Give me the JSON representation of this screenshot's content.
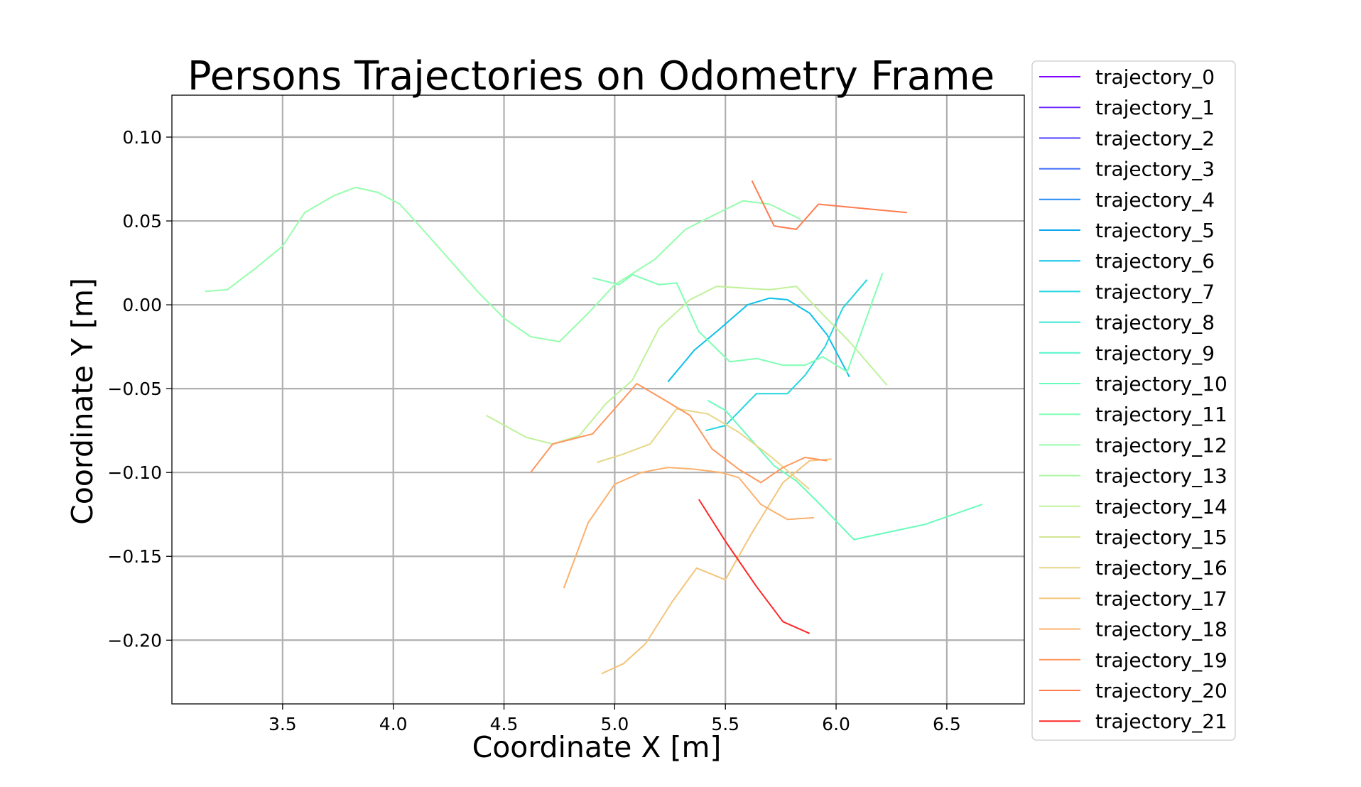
{
  "chart_data": {
    "type": "line",
    "title": "Persons Trajectories on Odometry Frame",
    "xlabel": "Coordinate X [m]",
    "ylabel": "Coordinate Y [m]",
    "xlim": [
      3.0,
      6.85
    ],
    "ylim": [
      -0.238,
      0.125
    ],
    "xticks": [
      3.5,
      4.0,
      4.5,
      5.0,
      5.5,
      6.0,
      6.5
    ],
    "yticks": [
      0.1,
      0.05,
      0.0,
      -0.05,
      -0.1,
      -0.15,
      -0.2
    ],
    "xtick_labels": [
      "3.5",
      "4.0",
      "4.5",
      "5.0",
      "5.5",
      "6.0",
      "6.5"
    ],
    "ytick_labels": [
      "0.10",
      "0.05",
      "0.00",
      "−0.05",
      "−0.10",
      "−0.15",
      "−0.20"
    ],
    "grid": true,
    "legend_position": "outside-right",
    "series": [
      {
        "name": "trajectory_0",
        "color": "#8000ff",
        "points": []
      },
      {
        "name": "trajectory_1",
        "color": "#6a24fe",
        "points": []
      },
      {
        "name": "trajectory_2",
        "color": "#5247fc",
        "points": []
      },
      {
        "name": "trajectory_3",
        "color": "#3c6af9",
        "points": []
      },
      {
        "name": "trajectory_4",
        "color": "#2489f5",
        "points": []
      },
      {
        "name": "trajectory_5",
        "color": "#0ea7ef",
        "points": []
      },
      {
        "name": "trajectory_6",
        "color": "#0cc0e9",
        "points": [
          [
            5.24,
            -0.046
          ],
          [
            5.36,
            -0.027
          ],
          [
            5.46,
            -0.016
          ],
          [
            5.6,
            0.0
          ],
          [
            5.7,
            0.004
          ],
          [
            5.78,
            0.003
          ],
          [
            5.88,
            -0.005
          ],
          [
            5.96,
            -0.018
          ],
          [
            6.06,
            -0.043
          ]
        ]
      },
      {
        "name": "trajectory_7",
        "color": "#24d6e0",
        "points": [
          [
            5.41,
            -0.075
          ],
          [
            5.5,
            -0.072
          ],
          [
            5.64,
            -0.053
          ],
          [
            5.78,
            -0.053
          ],
          [
            5.86,
            -0.042
          ],
          [
            5.95,
            -0.025
          ],
          [
            6.03,
            -0.002
          ],
          [
            6.14,
            0.015
          ]
        ]
      },
      {
        "name": "trajectory_8",
        "color": "#3ae7d5",
        "points": []
      },
      {
        "name": "trajectory_9",
        "color": "#52f4ca",
        "points": []
      },
      {
        "name": "trajectory_10",
        "color": "#6afcbc",
        "points": [
          [
            5.42,
            -0.057
          ],
          [
            5.5,
            -0.063
          ],
          [
            5.6,
            -0.078
          ],
          [
            5.72,
            -0.096
          ],
          [
            5.82,
            -0.105
          ],
          [
            5.92,
            -0.118
          ],
          [
            6.08,
            -0.14
          ],
          [
            6.4,
            -0.131
          ],
          [
            6.66,
            -0.119
          ]
        ]
      },
      {
        "name": "trajectory_11",
        "color": "#80ffb4",
        "points": [
          [
            4.9,
            0.016
          ],
          [
            5.02,
            0.012
          ],
          [
            5.08,
            0.018
          ],
          [
            5.2,
            0.012
          ],
          [
            5.28,
            0.013
          ],
          [
            5.38,
            -0.016
          ],
          [
            5.52,
            -0.034
          ],
          [
            5.64,
            -0.032
          ],
          [
            5.76,
            -0.036
          ],
          [
            5.86,
            -0.036
          ],
          [
            5.94,
            -0.031
          ],
          [
            6.05,
            -0.04
          ],
          [
            6.21,
            0.019
          ]
        ]
      },
      {
        "name": "trajectory_12",
        "color": "#96feac",
        "points": [
          [
            3.15,
            0.008
          ],
          [
            3.25,
            0.009
          ],
          [
            3.38,
            0.022
          ],
          [
            3.5,
            0.035
          ],
          [
            3.6,
            0.055
          ],
          [
            3.73,
            0.065
          ],
          [
            3.83,
            0.07
          ],
          [
            3.93,
            0.067
          ],
          [
            4.03,
            0.06
          ],
          [
            4.2,
            0.035
          ],
          [
            4.38,
            0.008
          ],
          [
            4.5,
            -0.008
          ],
          [
            4.62,
            -0.019
          ],
          [
            4.75,
            -0.022
          ],
          [
            4.88,
            -0.005
          ],
          [
            5.0,
            0.012
          ],
          [
            5.18,
            0.027
          ],
          [
            5.32,
            0.045
          ],
          [
            5.44,
            0.053
          ],
          [
            5.58,
            0.062
          ],
          [
            5.7,
            0.06
          ],
          [
            5.84,
            0.051
          ]
        ]
      },
      {
        "name": "trajectory_13",
        "color": "#acf9a3",
        "points": []
      },
      {
        "name": "trajectory_14",
        "color": "#c0f19a",
        "points": [
          [
            4.42,
            -0.066
          ],
          [
            4.6,
            -0.079
          ],
          [
            4.72,
            -0.083
          ],
          [
            4.84,
            -0.078
          ],
          [
            4.96,
            -0.059
          ],
          [
            5.08,
            -0.045
          ],
          [
            5.2,
            -0.014
          ],
          [
            5.34,
            0.003
          ],
          [
            5.46,
            0.011
          ],
          [
            5.58,
            0.01
          ],
          [
            5.7,
            0.009
          ],
          [
            5.82,
            0.011
          ],
          [
            5.92,
            -0.003
          ],
          [
            6.06,
            -0.022
          ],
          [
            6.23,
            -0.048
          ]
        ]
      },
      {
        "name": "trajectory_15",
        "color": "#d4e691",
        "points": []
      },
      {
        "name": "trajectory_16",
        "color": "#e6d787",
        "points": [
          [
            4.92,
            -0.094
          ],
          [
            5.04,
            -0.089
          ],
          [
            5.16,
            -0.083
          ],
          [
            5.28,
            -0.062
          ],
          [
            5.42,
            -0.065
          ],
          [
            5.56,
            -0.076
          ],
          [
            5.7,
            -0.09
          ],
          [
            5.88,
            -0.11
          ]
        ]
      },
      {
        "name": "trajectory_17",
        "color": "#f4c47a",
        "points": [
          [
            4.94,
            -0.22
          ],
          [
            5.04,
            -0.214
          ],
          [
            5.14,
            -0.202
          ],
          [
            5.26,
            -0.177
          ],
          [
            5.37,
            -0.157
          ],
          [
            5.5,
            -0.164
          ],
          [
            5.62,
            -0.136
          ],
          [
            5.76,
            -0.106
          ],
          [
            5.88,
            -0.093
          ],
          [
            5.98,
            -0.092
          ]
        ]
      },
      {
        "name": "trajectory_18",
        "color": "#fcb06c",
        "points": [
          [
            4.77,
            -0.169
          ],
          [
            4.88,
            -0.13
          ],
          [
            5.0,
            -0.107
          ],
          [
            5.12,
            -0.1
          ],
          [
            5.24,
            -0.097
          ],
          [
            5.36,
            -0.098
          ],
          [
            5.48,
            -0.1
          ],
          [
            5.56,
            -0.103
          ],
          [
            5.66,
            -0.119
          ],
          [
            5.78,
            -0.128
          ],
          [
            5.9,
            -0.127
          ]
        ]
      },
      {
        "name": "trajectory_19",
        "color": "#ff985e",
        "points": [
          [
            4.62,
            -0.1
          ],
          [
            4.72,
            -0.083
          ],
          [
            4.9,
            -0.077
          ],
          [
            5.1,
            -0.047
          ],
          [
            5.24,
            -0.058
          ],
          [
            5.34,
            -0.066
          ],
          [
            5.44,
            -0.086
          ],
          [
            5.56,
            -0.098
          ],
          [
            5.66,
            -0.106
          ],
          [
            5.76,
            -0.097
          ],
          [
            5.86,
            -0.091
          ],
          [
            5.96,
            -0.093
          ]
        ]
      },
      {
        "name": "trajectory_20",
        "color": "#ff7b4e",
        "points": [
          [
            5.62,
            0.074
          ],
          [
            5.72,
            0.047
          ],
          [
            5.82,
            0.045
          ],
          [
            5.92,
            0.06
          ],
          [
            6.32,
            0.055
          ]
        ]
      },
      {
        "name": "trajectory_21",
        "color": "#ff2626",
        "points": [
          [
            5.38,
            -0.116
          ],
          [
            5.5,
            -0.141
          ],
          [
            5.64,
            -0.168
          ],
          [
            5.76,
            -0.189
          ],
          [
            5.88,
            -0.196
          ]
        ]
      }
    ]
  }
}
